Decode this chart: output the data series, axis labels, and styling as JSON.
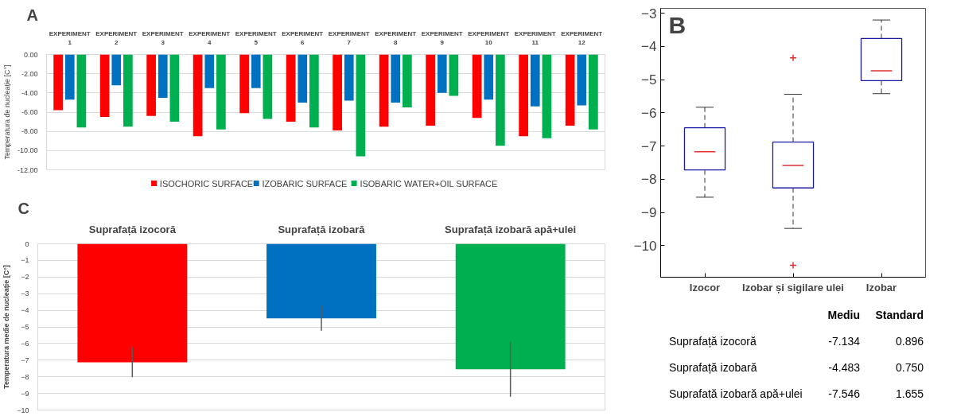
{
  "chart_data": [
    {
      "type": "bar",
      "title": "A",
      "categories": [
        "EXPERIMENT\n1",
        "EXPERIMENT\n2",
        "EXPERIMENT\n3",
        "EXPERIMENT\n4",
        "EXPERIMENT\n5",
        "EXPERIMENT\n6",
        "EXPERIMENT\n7",
        "EXPERIMENT\n8",
        "EXPERIMENT\n9",
        "EXPERIMENT\n10",
        "EXPERIMENT\n11",
        "EXPERIMENT\n12"
      ],
      "series": [
        {
          "name": "ISOCHORIC SURFACE",
          "color": "#ff0000",
          "values": [
            -5.8,
            -6.5,
            -6.4,
            -8.5,
            -6.1,
            -7.0,
            -7.9,
            -7.5,
            -7.4,
            -6.6,
            -8.5,
            -7.4
          ]
        },
        {
          "name": "IZOBARIC SURFACE",
          "color": "#0070c0",
          "values": [
            -4.7,
            -3.2,
            -4.5,
            -3.5,
            -3.5,
            -5.0,
            -4.8,
            -5.0,
            -4.0,
            -4.7,
            -5.4,
            -5.3
          ]
        },
        {
          "name": "ISOBARIC WATER+OIL SURFACE",
          "color": "#00b050",
          "values": [
            -7.6,
            -7.5,
            -7.0,
            -7.8,
            -6.7,
            -7.6,
            -10.6,
            -5.5,
            -4.3,
            -9.5,
            -8.7,
            -7.8
          ]
        }
      ],
      "ylabel": "Temperatura de nucleație [C°]",
      "ylim": [
        -12,
        0
      ],
      "yticks": [
        {
          "value": 0,
          "label": "0.00"
        },
        {
          "value": -2,
          "label": "-2.00"
        },
        {
          "value": -4,
          "label": "-4.00"
        },
        {
          "value": -6,
          "label": "-6.00"
        },
        {
          "value": -8,
          "label": "-8.00"
        },
        {
          "value": -10,
          "label": "-10.00"
        },
        {
          "value": -12,
          "label": "-12.00"
        }
      ],
      "grid": "y",
      "legend": "bottom"
    },
    {
      "type": "box",
      "title": "B",
      "categories": [
        "Izocor",
        "Izobar și sigilare ulei",
        "Izobar"
      ],
      "series": [
        {
          "color": "#1a1aa6",
          "boxes": [
            {
              "low": -8.54,
              "q1": -7.72,
              "median": -7.17,
              "q3": -6.45,
              "high": -5.83
            },
            {
              "low": -9.48,
              "q1": -8.26,
              "median": -7.58,
              "q3": -6.88,
              "high": -5.44,
              "outliers": [
                -4.34,
                -10.59
              ]
            },
            {
              "low": -5.42,
              "q1": -5.03,
              "median": -4.73,
              "q3": -3.76,
              "high": -3.2
            }
          ]
        }
      ],
      "ylim": [
        -10.95,
        -2.85
      ],
      "yticks": [
        -10,
        -9,
        -8,
        -7,
        -6,
        -5,
        -4,
        -3
      ],
      "grid": false
    },
    {
      "type": "bar",
      "title": "C",
      "categories": [
        "Suprafață izocoră",
        "Suprafață izobară",
        "Suprafață izobară apă+ulei"
      ],
      "values": [
        -7.134,
        -4.483,
        -7.546
      ],
      "errors": [
        0.896,
        0.75,
        1.655
      ],
      "colors": [
        "#ff0000",
        "#0070c0",
        "#00b050"
      ],
      "ylabel": "Temperatura medie de nucleație [C°]",
      "ylim": [
        -10,
        0
      ],
      "yticks": [
        0,
        -1,
        -2,
        -3,
        -4,
        -5,
        -6,
        -7,
        -8,
        -9,
        -10
      ],
      "grid": "y"
    },
    {
      "type": "other",
      "annotations": [
        "Mediu",
        "Standard",
        "Suprafață izocoră",
        "-7.134",
        "0.896",
        "Suprafață izobară",
        "-4.483",
        "0.750",
        "Suprafață izobară apă+ulei",
        "-7.546",
        "1.655"
      ]
    }
  ]
}
